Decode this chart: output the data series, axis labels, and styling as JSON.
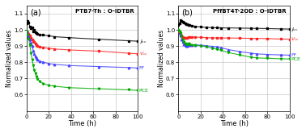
{
  "panel_a_title": "PTB7-Th : O-IDTBR",
  "panel_b_title": "PffBT4T-2OD : O-IDTBR",
  "xlabel": "Time (h)",
  "ylabel": "Normalized values",
  "xlim": [
    0,
    100
  ],
  "ylim": [
    0.5,
    1.15
  ],
  "yticks": [
    0.6,
    0.7,
    0.8,
    0.9,
    1.0,
    1.1
  ],
  "xticks": [
    0,
    20,
    40,
    60,
    80,
    100
  ],
  "colors": {
    "Jsc": "#000000",
    "Voc": "#ff2222",
    "FF": "#4444ff",
    "PCE": "#00aa00"
  },
  "panel_a": {
    "Jsc_x": [
      0,
      1,
      2,
      3,
      4,
      5,
      6,
      7,
      8,
      9,
      10,
      12,
      15,
      20,
      25,
      38,
      65,
      92,
      100
    ],
    "Jsc_y": [
      1.04,
      1.055,
      1.045,
      1.02,
      1.01,
      1.015,
      0.99,
      1.0,
      0.985,
      0.978,
      0.973,
      0.972,
      0.968,
      0.964,
      0.958,
      0.952,
      0.942,
      0.933,
      0.93
    ],
    "Voc_x": [
      0,
      1,
      2,
      3,
      4,
      5,
      6,
      7,
      8,
      9,
      10,
      12,
      15,
      20,
      25,
      38,
      65,
      92,
      100
    ],
    "Voc_y": [
      0.99,
      0.985,
      0.975,
      0.965,
      0.952,
      0.941,
      0.932,
      0.924,
      0.916,
      0.908,
      0.902,
      0.896,
      0.891,
      0.886,
      0.882,
      0.876,
      0.869,
      0.856,
      0.852
    ],
    "FF_x": [
      0,
      1,
      2,
      3,
      4,
      5,
      6,
      7,
      8,
      9,
      10,
      12,
      15,
      20,
      25,
      38,
      65,
      92,
      100
    ],
    "FF_y": [
      0.99,
      0.975,
      0.96,
      0.94,
      0.92,
      0.9,
      0.872,
      0.852,
      0.838,
      0.826,
      0.816,
      0.808,
      0.8,
      0.792,
      0.787,
      0.78,
      0.773,
      0.768,
      0.764
    ],
    "PCE_x": [
      0,
      1,
      2,
      3,
      4,
      5,
      6,
      7,
      8,
      9,
      10,
      12,
      15,
      20,
      25,
      38,
      65,
      92,
      100
    ],
    "PCE_y": [
      0.99,
      0.97,
      0.945,
      0.905,
      0.858,
      0.818,
      0.78,
      0.75,
      0.73,
      0.71,
      0.698,
      0.68,
      0.668,
      0.658,
      0.652,
      0.643,
      0.636,
      0.63,
      0.626
    ]
  },
  "panel_b": {
    "Jsc_x": [
      0,
      1,
      2,
      3,
      4,
      5,
      6,
      7,
      8,
      9,
      10,
      12,
      15,
      20,
      25,
      30,
      35,
      38,
      45,
      55,
      65,
      70,
      80,
      92,
      100
    ],
    "Jsc_y": [
      1.03,
      1.04,
      1.06,
      1.055,
      1.048,
      1.044,
      1.04,
      1.036,
      1.033,
      1.032,
      1.028,
      1.025,
      1.022,
      1.018,
      1.016,
      1.014,
      1.013,
      1.012,
      1.012,
      1.011,
      1.01,
      1.009,
      1.008,
      1.006,
      1.005
    ],
    "Voc_x": [
      0,
      1,
      2,
      3,
      4,
      5,
      6,
      7,
      8,
      9,
      10,
      12,
      15,
      20,
      25,
      30,
      35,
      38,
      45,
      55,
      65,
      70,
      80,
      92,
      100
    ],
    "Voc_y": [
      0.99,
      0.984,
      0.975,
      0.966,
      0.958,
      0.953,
      0.952,
      0.952,
      0.953,
      0.957,
      0.958,
      0.956,
      0.955,
      0.955,
      0.952,
      0.951,
      0.95,
      0.95,
      0.95,
      0.949,
      0.948,
      0.947,
      0.946,
      0.944,
      0.942
    ],
    "FF_x": [
      0,
      1,
      2,
      3,
      4,
      5,
      6,
      7,
      8,
      9,
      10,
      12,
      15,
      20,
      25,
      30,
      35,
      38,
      45,
      55,
      65,
      70,
      80,
      92,
      100
    ],
    "FF_y": [
      1.0,
      0.982,
      0.965,
      0.943,
      0.925,
      0.912,
      0.907,
      0.902,
      0.9,
      0.904,
      0.906,
      0.906,
      0.907,
      0.906,
      0.902,
      0.898,
      0.895,
      0.89,
      0.878,
      0.866,
      0.856,
      0.852,
      0.848,
      0.845,
      0.844
    ],
    "PCE_x": [
      0,
      1,
      2,
      3,
      4,
      5,
      6,
      7,
      8,
      9,
      10,
      12,
      15,
      20,
      25,
      30,
      35,
      38,
      45,
      55,
      65,
      70,
      80,
      92,
      100
    ],
    "PCE_y": [
      1.0,
      0.992,
      0.978,
      0.962,
      0.94,
      0.924,
      0.916,
      0.91,
      0.91,
      0.915,
      0.912,
      0.907,
      0.906,
      0.902,
      0.896,
      0.888,
      0.88,
      0.874,
      0.86,
      0.845,
      0.832,
      0.827,
      0.824,
      0.822,
      0.82
    ]
  },
  "label_Jsc": "$J_{sc}$",
  "label_Voc": "$V_{oc}$",
  "label_FF": "FF",
  "label_PCE": "PCE",
  "marker_Jsc": "s",
  "marker_Voc": "s",
  "marker_FF": "^",
  "marker_PCE": "v",
  "background_color": "#ffffff",
  "grid_color": "#bbbbbb"
}
